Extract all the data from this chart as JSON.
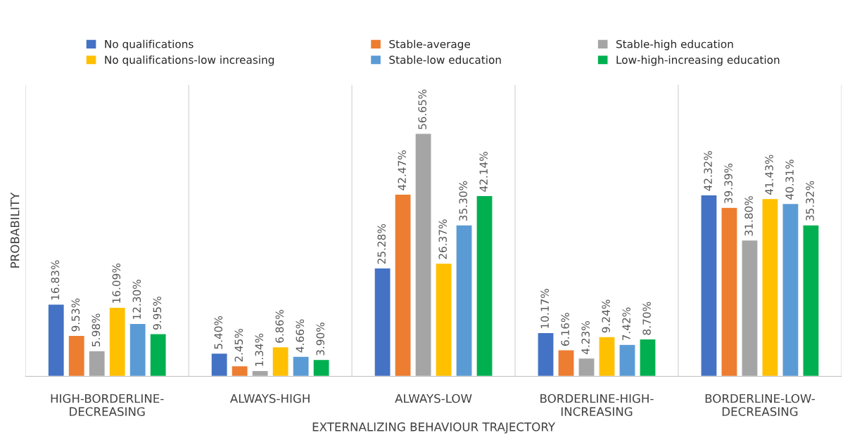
{
  "chart_data": {
    "type": "bar",
    "xlabel": "EXTERNALIZING BEHAVIOUR TRAJECTORY",
    "ylabel": "PROBABILITY",
    "categories": [
      "HIGH-BORDERLINE-\nDECREASING",
      "ALWAYS-HIGH",
      "ALWAYS-LOW",
      "BORDERLINE-HIGH-\nINCREASING",
      "BORDERLINE-LOW-\nDECREASING"
    ],
    "series": [
      {
        "name": "No qualifications",
        "color": "#4472c4",
        "values": [
          16.83,
          5.4,
          25.28,
          10.17,
          42.32
        ],
        "value_labels": [
          "16.83%",
          "5.40%",
          "25.28%",
          "10.17%",
          "42.32%"
        ]
      },
      {
        "name": "Stable-average",
        "color": "#ed7d31",
        "values": [
          9.53,
          2.45,
          42.47,
          6.16,
          39.39
        ],
        "value_labels": [
          "9.53%",
          "2.45%",
          "42.47%",
          "6.16%",
          "39.39%"
        ]
      },
      {
        "name": "Stable-high education",
        "color": "#a5a5a5",
        "values": [
          5.98,
          1.34,
          56.65,
          4.23,
          31.8
        ],
        "value_labels": [
          "5.98%",
          "1.34%",
          "56.65%",
          "4.23%",
          "31.80%"
        ]
      },
      {
        "name": "No qualifications-low increasing",
        "color": "#ffc000",
        "values": [
          16.09,
          6.86,
          26.37,
          9.24,
          41.43
        ],
        "value_labels": [
          "16.09%",
          "6.86%",
          "26.37%",
          "9.24%",
          "41.43%"
        ]
      },
      {
        "name": "Stable-low education",
        "color": "#5b9bd5",
        "values": [
          12.3,
          4.66,
          35.3,
          7.42,
          40.31
        ],
        "value_labels": [
          "12.30%",
          "4.66%",
          "35.30%",
          "7.42%",
          "40.31%"
        ]
      },
      {
        "name": "Low-high-increasing education",
        "color": "#00b050",
        "values": [
          9.95,
          3.9,
          42.14,
          8.7,
          35.32
        ],
        "value_labels": [
          "9.95%",
          "3.90%",
          "42.14%",
          "8.70%",
          "35.32%"
        ]
      }
    ],
    "grid": "x",
    "legend": "top"
  }
}
